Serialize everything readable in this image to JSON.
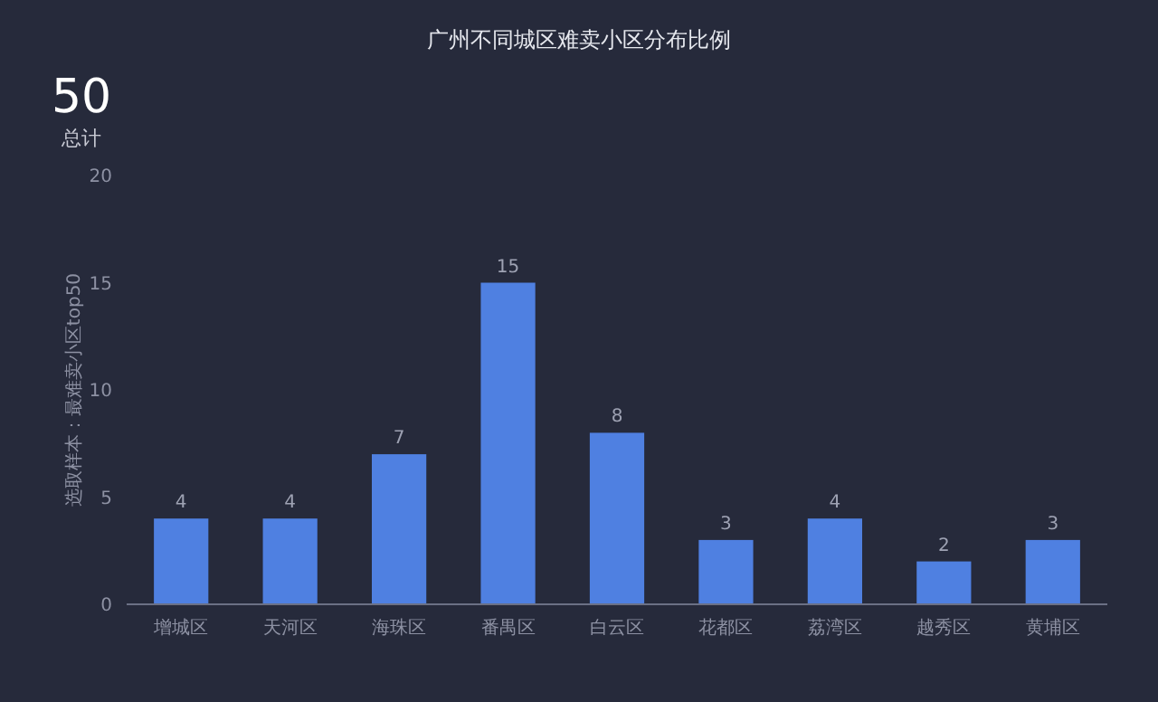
{
  "chart_data": {
    "type": "bar",
    "title": "广州不同城区难卖小区分布比例",
    "ylabel": "选取样本：最难卖小区top50",
    "annotations": [
      "50",
      "总计"
    ],
    "categories": [
      "增城区",
      "天河区",
      "海珠区",
      "番禺区",
      "白云区",
      "花都区",
      "荔湾区",
      "越秀区",
      "黄埔区"
    ],
    "values": [
      4,
      4,
      7,
      15,
      8,
      3,
      4,
      2,
      3
    ],
    "color": "#4f80e1",
    "ylim": [
      0,
      20
    ],
    "yticks": [
      0,
      5,
      10,
      15,
      20
    ],
    "data_labels": true
  }
}
